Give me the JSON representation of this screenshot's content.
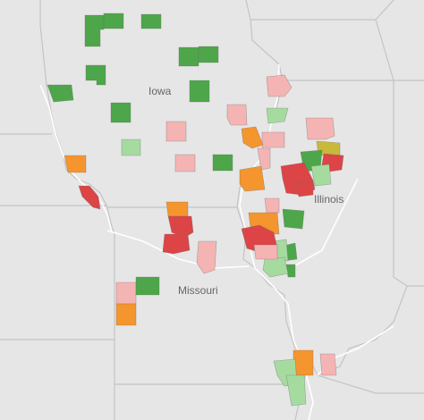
{
  "labels": {
    "iowa": "Iowa",
    "illinois": "Illinois",
    "missouri": "Missouri"
  },
  "colors": {
    "land": "#e8e8e8",
    "water": "#ffffff",
    "border": "#c9c9c9",
    "dark_green": "#4ea64a",
    "light_green": "#a6dba0",
    "pink": "#f5b4b4",
    "orange": "#f5952e",
    "red": "#dc4446",
    "olive": "#c8b93a"
  },
  "legend_categories": [
    "dark_green",
    "light_green",
    "pink",
    "orange",
    "red",
    "olive"
  ]
}
